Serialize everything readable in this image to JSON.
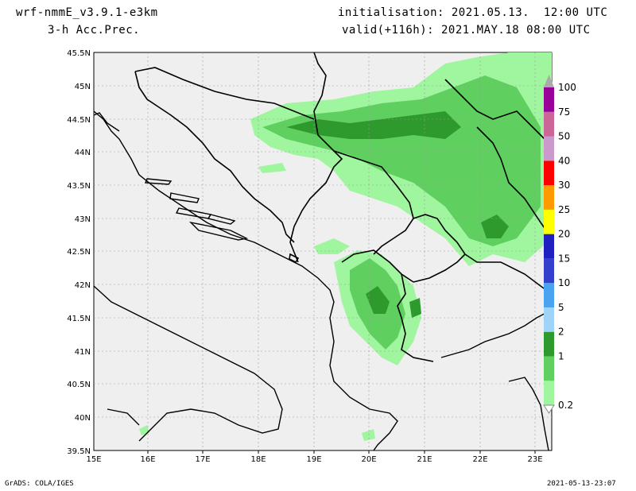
{
  "header": {
    "model": "wrf-nmmE_v3.9.1-e3km",
    "field": "3-h Acc.Prec.",
    "init_label": "initialisation: 2021.05.13.  12:00 UTC",
    "valid_label": "valid(+116h): 2021.MAY.18 08:00 UTC"
  },
  "axes": {
    "lon_labels": [
      "15E",
      "16E",
      "17E",
      "18E",
      "19E",
      "20E",
      "21E",
      "22E",
      "23E"
    ],
    "lat_labels": [
      "45.5N",
      "45N",
      "44.5N",
      "44N",
      "43.5N",
      "43N",
      "42.5N",
      "42N",
      "41.5N",
      "41N",
      "40.5N",
      "40N",
      "39.5N"
    ]
  },
  "legend": {
    "levels": [
      {
        "label": "0.2",
        "color": "#a0f59f"
      },
      {
        "label": "1",
        "color": "#5fd05f"
      },
      {
        "label": "2",
        "color": "#2e9a2e"
      },
      {
        "label": "5",
        "color": "#9fd4f8"
      },
      {
        "label": "10",
        "color": "#4aa3f0"
      },
      {
        "label": "15",
        "color": "#3440cc"
      },
      {
        "label": "20",
        "color": "#2020c0"
      },
      {
        "label": "25",
        "color": "#ffff00"
      },
      {
        "label": "30",
        "color": "#ff9900"
      },
      {
        "label": "40",
        "color": "#ff0000"
      },
      {
        "label": "50",
        "color": "#cc99cc"
      },
      {
        "label": "75",
        "color": "#cc6699"
      },
      {
        "label": "100",
        "color": "#990099"
      }
    ]
  },
  "footer": {
    "left": "GrADS: COLA/IGES",
    "right": "2021-05-13-23:07"
  },
  "colors": {
    "map_background": "#efefef",
    "precip_light": "#a0f59f",
    "precip_mid": "#5fd05f",
    "precip_dark": "#2e9a2e"
  }
}
